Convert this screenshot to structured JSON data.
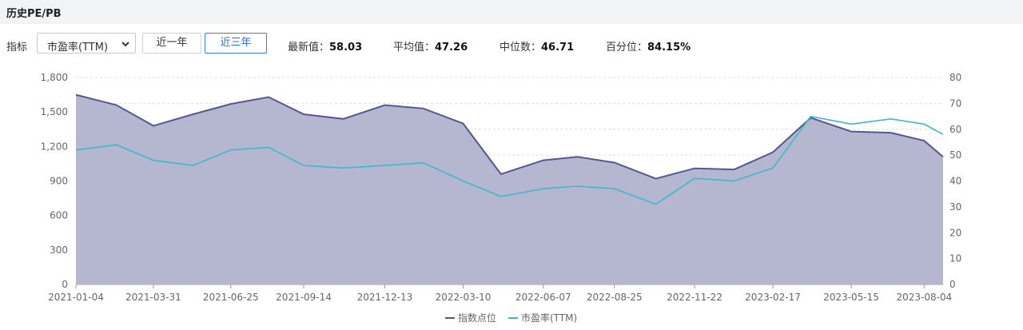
{
  "header": {
    "title": "历史PE/PB"
  },
  "controls": {
    "indicator_label": "指标",
    "indicator_select": "市盈率(TTM)",
    "range_buttons": [
      {
        "label": "近一年",
        "active": false
      },
      {
        "label": "近三年",
        "active": true
      }
    ],
    "stats": {
      "latest_label": "最新值：",
      "latest_value": "58.03",
      "average_label": "平均值：",
      "average_value": "47.26",
      "median_label": "中位数：",
      "median_value": "46.71",
      "percentile_label": "百分位：",
      "percentile_value": "84.15%"
    }
  },
  "colors": {
    "index": "#55578f",
    "index_fill": "#b5b7d0",
    "pe": "#3fb8c9",
    "grid": "#dcdcdc"
  },
  "chart_data": {
    "type": "area",
    "x_tick_labels": [
      "2021-01-04",
      "2021-03-31",
      "2021-06-25",
      "2021-09-14",
      "2021-12-13",
      "2022-03-10",
      "2022-06-07",
      "2022-08-25",
      "2022-11-22",
      "2023-02-17",
      "2023-05-15",
      "2023-08-04"
    ],
    "x": [
      "2021-01-04",
      "2021-02-18",
      "2021-03-31",
      "2021-05-14",
      "2021-06-25",
      "2021-08-06",
      "2021-09-14",
      "2021-10-28",
      "2021-12-13",
      "2022-01-25",
      "2022-03-10",
      "2022-04-21",
      "2022-06-07",
      "2022-07-15",
      "2022-08-25",
      "2022-10-10",
      "2022-11-22",
      "2023-01-05",
      "2023-02-17",
      "2023-03-31",
      "2023-05-15",
      "2023-06-28",
      "2023-08-04",
      "2023-08-25"
    ],
    "y_left": {
      "ticks": [
        0,
        300,
        600,
        900,
        1200,
        1500,
        1800
      ],
      "ylim": [
        0,
        1800
      ]
    },
    "y_right": {
      "ticks": [
        0,
        10,
        20,
        30,
        40,
        50,
        60,
        70,
        80
      ],
      "ylim": [
        0,
        80
      ]
    },
    "legend": [
      "指数点位",
      "市盈率(TTM)"
    ],
    "legend_position": "bottom-center",
    "series": [
      {
        "name": "指数点位",
        "axis": "left",
        "style": "area",
        "values": [
          1650,
          1560,
          1380,
          1480,
          1570,
          1630,
          1480,
          1440,
          1560,
          1530,
          1400,
          960,
          1080,
          1110,
          1060,
          920,
          1010,
          1000,
          1150,
          1450,
          1330,
          1320,
          1250,
          1110
        ]
      },
      {
        "name": "市盈率(TTM)",
        "axis": "right",
        "style": "line",
        "values": [
          52,
          54,
          48,
          46,
          52,
          53,
          46,
          45,
          46,
          47,
          40,
          34,
          37,
          38,
          37,
          31,
          41,
          40,
          45,
          65,
          62,
          64,
          62,
          58
        ]
      }
    ]
  }
}
